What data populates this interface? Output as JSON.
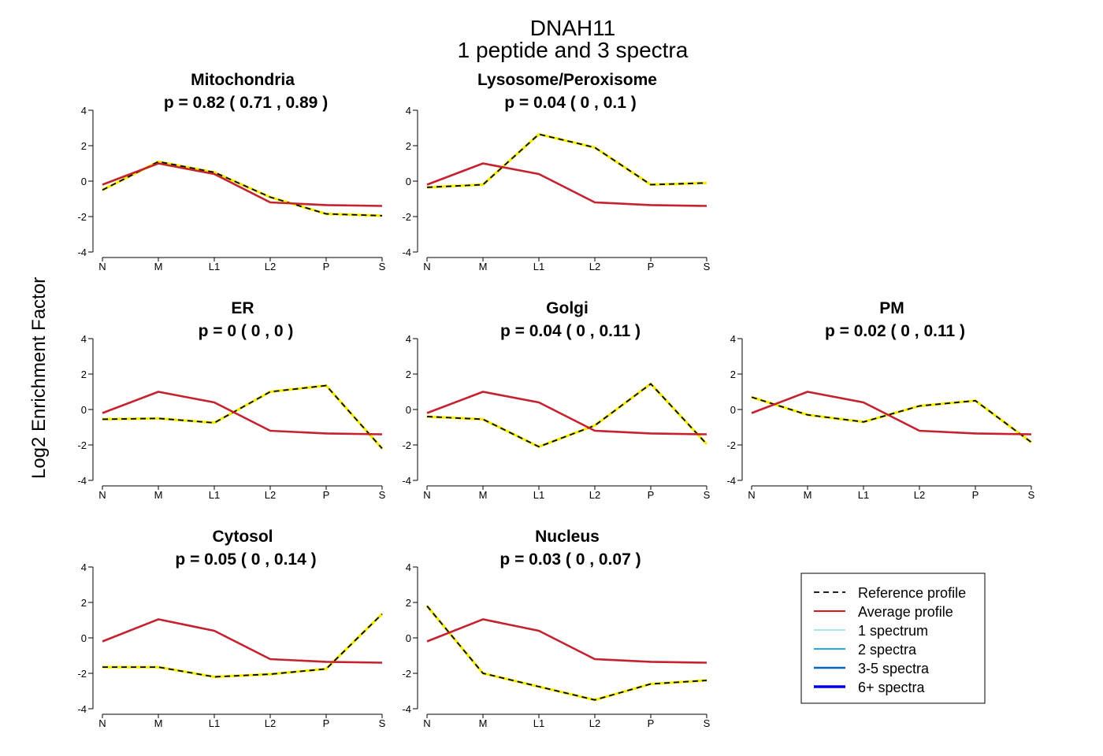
{
  "title": "DNAH11",
  "subtitle": "1  peptide and  3  spectra",
  "ylabel": "Log2 Enrichment Factor",
  "legend": [
    {
      "label": "Reference profile",
      "color": "#000000",
      "style": "dashed"
    },
    {
      "label": "Average profile",
      "color": "#d7191c",
      "style": "solid"
    },
    {
      "label": "1 spectrum",
      "color": "#80e0f0",
      "style": "solid"
    },
    {
      "label": "2 spectra",
      "color": "#20b0e0",
      "style": "solid"
    },
    {
      "label": "3-5 spectra",
      "color": "#1060c0",
      "style": "solid"
    },
    {
      "label": "6+ spectra",
      "color": "#0000e0",
      "style": "solid"
    }
  ],
  "chart_data": [
    {
      "type": "line",
      "title": "Mitochondria",
      "pvalue": "p =  0.82  ( 0.71 ,  0.89 )",
      "x": [
        "N",
        "M",
        "L1",
        "L2",
        "P",
        "S"
      ],
      "ylim": [
        -4,
        4
      ],
      "yticks": [
        -4,
        -2,
        0,
        2,
        4
      ],
      "series": [
        {
          "name": "Reference profile",
          "values": [
            -0.5,
            1.1,
            0.5,
            -0.9,
            -1.85,
            -1.95
          ]
        },
        {
          "name": "Average profile",
          "values": [
            -0.2,
            1.0,
            0.4,
            -1.2,
            -1.35,
            -1.4
          ]
        }
      ]
    },
    {
      "type": "line",
      "title": "Lysosome/Peroxisome",
      "pvalue": "p =  0.04  ( 0 ,  0.1 )",
      "x": [
        "N",
        "M",
        "L1",
        "L2",
        "P",
        "S"
      ],
      "ylim": [
        -4,
        4
      ],
      "yticks": [
        -4,
        -2,
        0,
        2,
        4
      ],
      "series": [
        {
          "name": "Reference profile",
          "values": [
            -0.35,
            -0.2,
            2.65,
            1.9,
            -0.2,
            -0.1
          ]
        },
        {
          "name": "Average profile",
          "values": [
            -0.2,
            1.0,
            0.4,
            -1.2,
            -1.35,
            -1.4
          ]
        }
      ]
    },
    {
      "type": "line",
      "title": "ER",
      "pvalue": "p =  0  ( 0 ,  0 )",
      "x": [
        "N",
        "M",
        "L1",
        "L2",
        "P",
        "S"
      ],
      "ylim": [
        -4,
        4
      ],
      "yticks": [
        -4,
        -2,
        0,
        2,
        4
      ],
      "series": [
        {
          "name": "Reference profile",
          "values": [
            -0.55,
            -0.5,
            -0.75,
            1.0,
            1.35,
            -2.2
          ]
        },
        {
          "name": "Average profile",
          "values": [
            -0.2,
            1.0,
            0.4,
            -1.2,
            -1.35,
            -1.4
          ]
        }
      ]
    },
    {
      "type": "line",
      "title": "Golgi",
      "pvalue": "p =  0.04  ( 0 ,  0.11 )",
      "x": [
        "N",
        "M",
        "L1",
        "L2",
        "P",
        "S"
      ],
      "ylim": [
        -4,
        4
      ],
      "yticks": [
        -4,
        -2,
        0,
        2,
        4
      ],
      "series": [
        {
          "name": "Reference profile",
          "values": [
            -0.4,
            -0.55,
            -2.1,
            -0.9,
            1.45,
            -1.95
          ]
        },
        {
          "name": "Average profile",
          "values": [
            -0.2,
            1.0,
            0.4,
            -1.2,
            -1.35,
            -1.4
          ]
        }
      ]
    },
    {
      "type": "line",
      "title": "PM",
      "pvalue": "p =  0.02  ( 0 ,  0.11 )",
      "x": [
        "N",
        "M",
        "L1",
        "L2",
        "P",
        "S"
      ],
      "ylim": [
        -4,
        4
      ],
      "yticks": [
        -4,
        -2,
        0,
        2,
        4
      ],
      "series": [
        {
          "name": "Reference profile",
          "values": [
            0.7,
            -0.3,
            -0.7,
            0.2,
            0.5,
            -1.85
          ]
        },
        {
          "name": "Average profile",
          "values": [
            -0.2,
            1.0,
            0.4,
            -1.2,
            -1.35,
            -1.4
          ]
        }
      ]
    },
    {
      "type": "line",
      "title": "Cytosol",
      "pvalue": "p =  0.05  ( 0 ,  0.14 )",
      "x": [
        "N",
        "M",
        "L1",
        "L2",
        "P",
        "S"
      ],
      "ylim": [
        -4,
        4
      ],
      "yticks": [
        -4,
        -2,
        0,
        2,
        4
      ],
      "series": [
        {
          "name": "Reference profile",
          "values": [
            -1.65,
            -1.65,
            -2.2,
            -2.05,
            -1.75,
            1.35
          ]
        },
        {
          "name": "Average profile",
          "values": [
            -0.2,
            1.05,
            0.4,
            -1.2,
            -1.35,
            -1.4
          ]
        }
      ]
    },
    {
      "type": "line",
      "title": "Nucleus",
      "pvalue": "p =  0.03  ( 0 ,  0.07 )",
      "x": [
        "N",
        "M",
        "L1",
        "L2",
        "P",
        "S"
      ],
      "ylim": [
        -4,
        4
      ],
      "yticks": [
        -4,
        -2,
        0,
        2,
        4
      ],
      "series": [
        {
          "name": "Reference profile",
          "values": [
            1.8,
            -2.0,
            -2.75,
            -3.5,
            -2.6,
            -2.4
          ]
        },
        {
          "name": "Average profile",
          "values": [
            -0.2,
            1.05,
            0.4,
            -1.2,
            -1.35,
            -1.4
          ]
        }
      ]
    }
  ]
}
